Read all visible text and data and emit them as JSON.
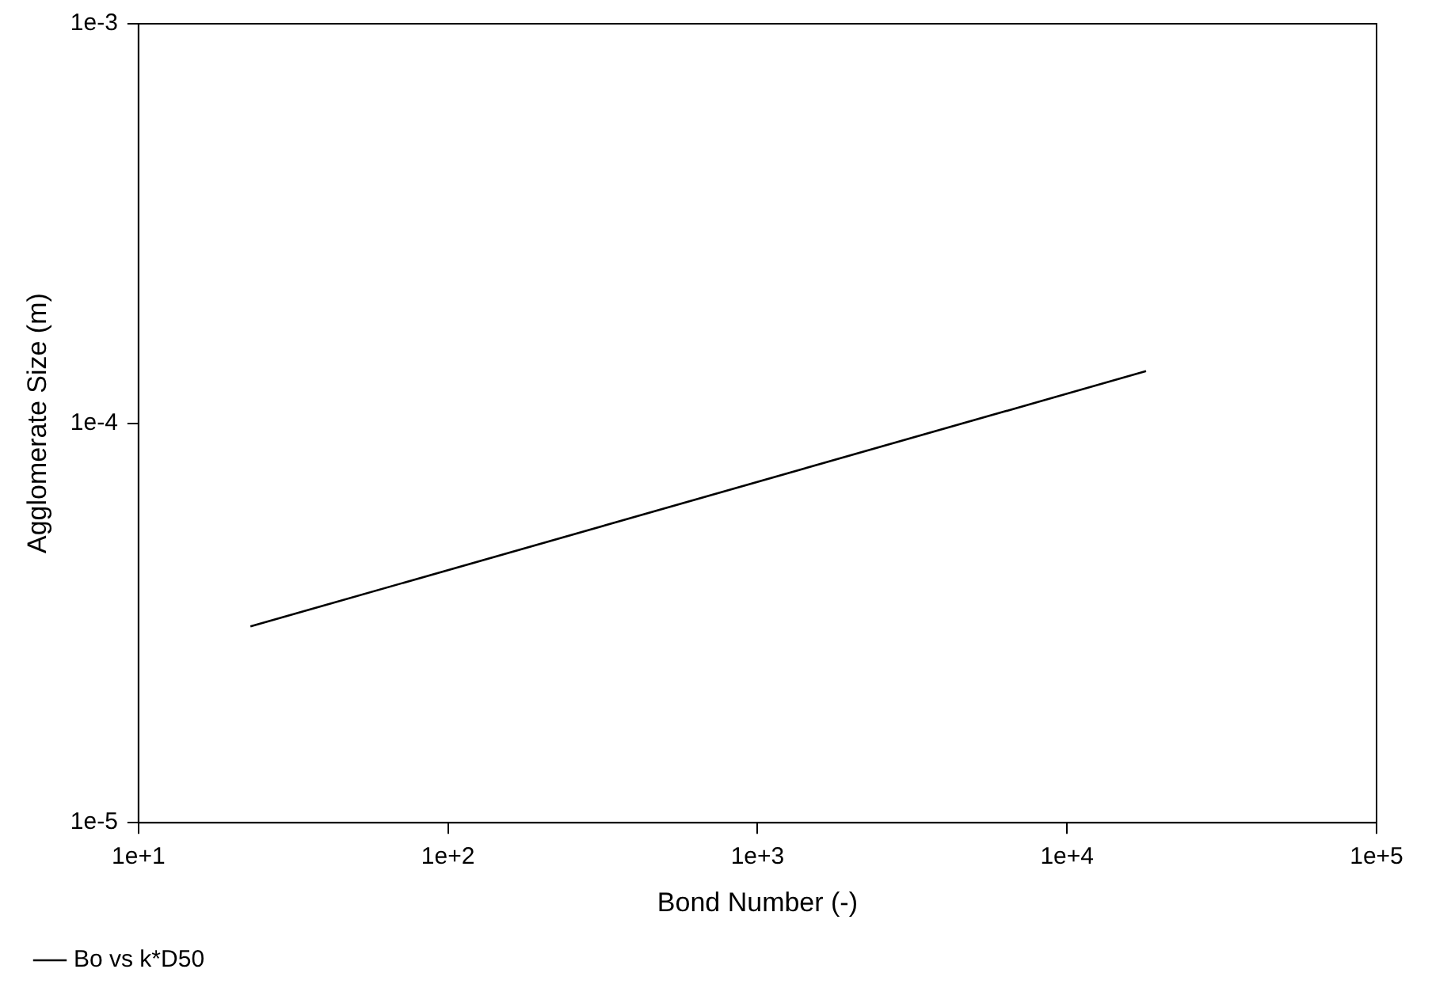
{
  "chart_data": {
    "type": "line",
    "xlabel": "Bond Number (-)",
    "ylabel": "Agglomerate Size (m)",
    "log": "xy",
    "grid": false,
    "legend": "bottom left",
    "marker": "none",
    "line_style": "solid",
    "xlim": [
      10,
      100000
    ],
    "ylim": [
      1e-05,
      0.001
    ],
    "xticks": [
      {
        "value": 10,
        "label": "1e+1"
      },
      {
        "value": 100,
        "label": "1e+2"
      },
      {
        "value": 1000,
        "label": "1e+3"
      },
      {
        "value": 10000,
        "label": "1e+4"
      },
      {
        "value": 100000,
        "label": "1e+5"
      }
    ],
    "yticks": [
      {
        "value": 1e-05,
        "label": "1e-5"
      },
      {
        "value": 0.0001,
        "label": "1e-4"
      },
      {
        "value": 0.001,
        "label": "1e-3"
      }
    ],
    "series": [
      {
        "name": "Bo vs k*D50",
        "color": "#000000",
        "x": [
          23,
          18000
        ],
        "values": [
          3.1e-05,
          0.000135
        ]
      }
    ]
  }
}
